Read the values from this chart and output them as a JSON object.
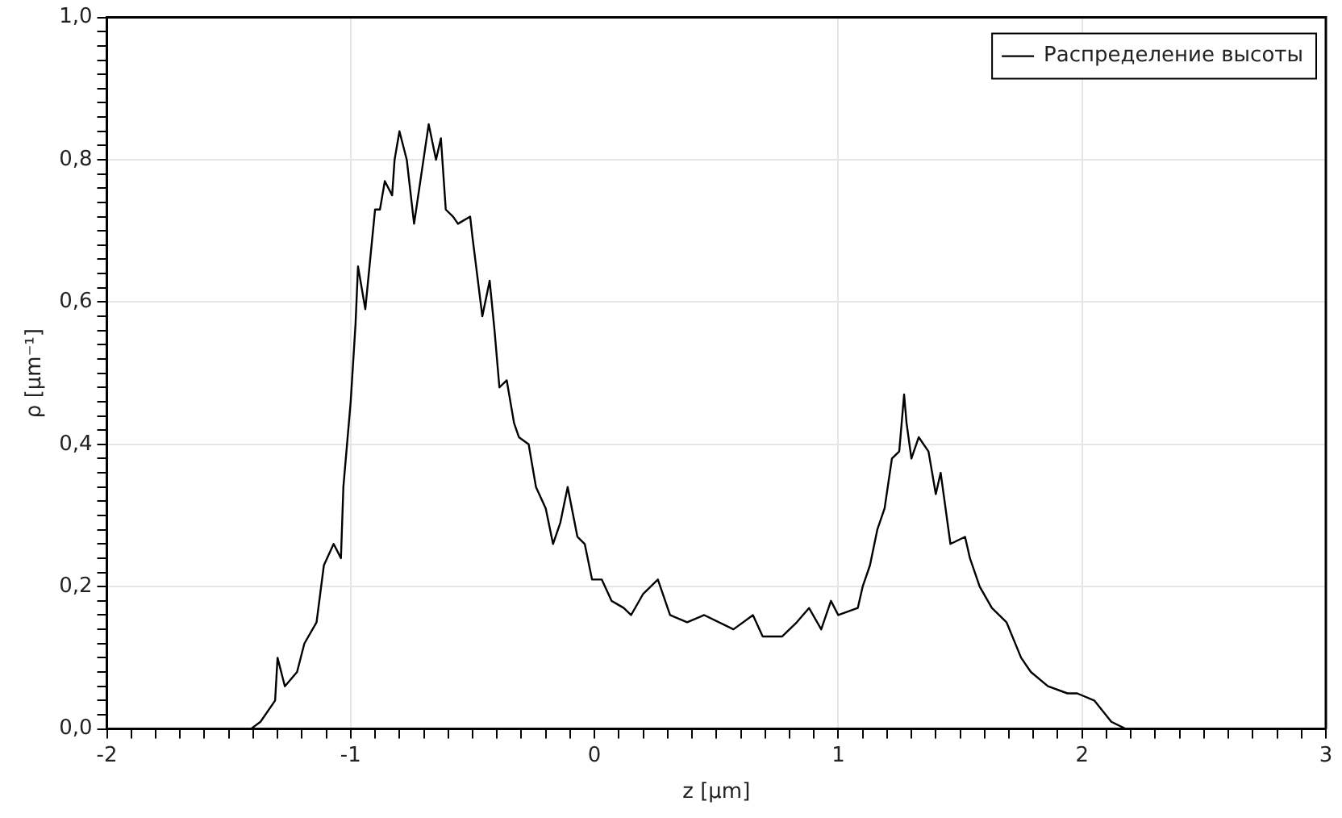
{
  "chart_data": {
    "type": "line",
    "xlabel": "z [µm]",
    "ylabel": "ρ [µm⁻¹]",
    "xlim": [
      -2,
      3
    ],
    "ylim": [
      0,
      1
    ],
    "xticks": [
      -2,
      {
        "value": -1.9,
        "label": null
      },
      {
        "value": -1.8,
        "label": null
      },
      {
        "value": -1.7,
        "label": null
      },
      {
        "value": -1.6,
        "label": null
      },
      {
        "value": -1.5,
        "label": null
      },
      {
        "value": -1.4,
        "label": null
      },
      {
        "value": -1.3,
        "label": null
      },
      {
        "value": -1.2,
        "label": null
      },
      {
        "value": -1.1,
        "label": null
      },
      -1,
      {
        "value": -0.9,
        "label": null
      },
      {
        "value": -0.8,
        "label": null
      },
      {
        "value": -0.7,
        "label": null
      },
      {
        "value": -0.6,
        "label": null
      },
      {
        "value": -0.5,
        "label": null
      },
      {
        "value": -0.4,
        "label": null
      },
      {
        "value": -0.3,
        "label": null
      },
      {
        "value": -0.2,
        "label": null
      },
      {
        "value": -0.1,
        "label": null
      },
      0,
      {
        "value": 0.1,
        "label": null
      },
      {
        "value": 0.2,
        "label": null
      },
      {
        "value": 0.3,
        "label": null
      },
      {
        "value": 0.4,
        "label": null
      },
      {
        "value": 0.5,
        "label": null
      },
      {
        "value": 0.6,
        "label": null
      },
      {
        "value": 0.7,
        "label": null
      },
      {
        "value": 0.8,
        "label": null
      },
      {
        "value": 0.9,
        "label": null
      },
      1,
      {
        "value": 1.1,
        "label": null
      },
      {
        "value": 1.2,
        "label": null
      },
      {
        "value": 1.3,
        "label": null
      },
      {
        "value": 1.4,
        "label": null
      },
      {
        "value": 1.5,
        "label": null
      },
      {
        "value": 1.6,
        "label": null
      },
      {
        "value": 1.7,
        "label": null
      },
      {
        "value": 1.8,
        "label": null
      },
      {
        "value": 1.9,
        "label": null
      },
      2,
      {
        "value": 2.1,
        "label": null
      },
      {
        "value": 2.2,
        "label": null
      },
      {
        "value": 2.3,
        "label": null
      },
      {
        "value": 2.4,
        "label": null
      },
      {
        "value": 2.5,
        "label": null
      },
      {
        "value": 2.6,
        "label": null
      },
      {
        "value": 2.7,
        "label": null
      },
      {
        "value": 2.8,
        "label": null
      },
      {
        "value": 2.9,
        "label": null
      },
      3
    ],
    "yticks": [
      {
        "value": 0,
        "label": "0,0"
      },
      {
        "value": 0.02,
        "label": null
      },
      {
        "value": 0.04,
        "label": null
      },
      {
        "value": 0.06,
        "label": null
      },
      {
        "value": 0.08,
        "label": null
      },
      {
        "value": 0.1,
        "label": null
      },
      {
        "value": 0.12,
        "label": null
      },
      {
        "value": 0.14,
        "label": null
      },
      {
        "value": 0.16,
        "label": null
      },
      {
        "value": 0.18,
        "label": null
      },
      {
        "value": 0.2,
        "label": "0,2"
      },
      {
        "value": 0.22,
        "label": null
      },
      {
        "value": 0.24,
        "label": null
      },
      {
        "value": 0.26,
        "label": null
      },
      {
        "value": 0.28,
        "label": null
      },
      {
        "value": 0.3,
        "label": null
      },
      {
        "value": 0.32,
        "label": null
      },
      {
        "value": 0.34,
        "label": null
      },
      {
        "value": 0.36,
        "label": null
      },
      {
        "value": 0.38,
        "label": null
      },
      {
        "value": 0.4,
        "label": "0,4"
      },
      {
        "value": 0.42,
        "label": null
      },
      {
        "value": 0.44,
        "label": null
      },
      {
        "value": 0.46,
        "label": null
      },
      {
        "value": 0.48,
        "label": null
      },
      {
        "value": 0.5,
        "label": null
      },
      {
        "value": 0.52,
        "label": null
      },
      {
        "value": 0.54,
        "label": null
      },
      {
        "value": 0.56,
        "label": null
      },
      {
        "value": 0.58,
        "label": null
      },
      {
        "value": 0.6,
        "label": "0,6"
      },
      {
        "value": 0.62,
        "label": null
      },
      {
        "value": 0.64,
        "label": null
      },
      {
        "value": 0.66,
        "label": null
      },
      {
        "value": 0.68,
        "label": null
      },
      {
        "value": 0.7,
        "label": null
      },
      {
        "value": 0.72,
        "label": null
      },
      {
        "value": 0.74,
        "label": null
      },
      {
        "value": 0.76,
        "label": null
      },
      {
        "value": 0.78,
        "label": null
      },
      {
        "value": 0.8,
        "label": "0,8"
      },
      {
        "value": 0.82,
        "label": null
      },
      {
        "value": 0.84,
        "label": null
      },
      {
        "value": 0.86,
        "label": null
      },
      {
        "value": 0.88,
        "label": null
      },
      {
        "value": 0.9,
        "label": null
      },
      {
        "value": 0.92,
        "label": null
      },
      {
        "value": 0.94,
        "label": null
      },
      {
        "value": 0.96,
        "label": null
      },
      {
        "value": 0.98,
        "label": null
      },
      {
        "value": 1,
        "label": "1,0"
      }
    ],
    "grid": true,
    "legend": "top right",
    "marker": "none",
    "line_style": "solid",
    "series": [
      {
        "name": "Распределение высоты",
        "color": "#000000",
        "x": [
          -1.41,
          -1.37,
          -1.31,
          -1.3,
          -1.27,
          -1.22,
          -1.19,
          -1.14,
          -1.11,
          -1.07,
          -1.04,
          -1.03,
          -1.0,
          -0.98,
          -0.97,
          -0.94,
          -0.92,
          -0.9,
          -0.88,
          -0.86,
          -0.83,
          -0.82,
          -0.8,
          -0.77,
          -0.74,
          -0.71,
          -0.68,
          -0.65,
          -0.63,
          -0.61,
          -0.58,
          -0.56,
          -0.51,
          -0.5,
          -0.46,
          -0.43,
          -0.41,
          -0.39,
          -0.36,
          -0.33,
          -0.31,
          -0.27,
          -0.24,
          -0.2,
          -0.17,
          -0.14,
          -0.11,
          -0.07,
          -0.04,
          -0.01,
          0.03,
          0.07,
          0.12,
          0.15,
          0.2,
          0.26,
          0.31,
          0.38,
          0.45,
          0.57,
          0.65,
          0.69,
          0.77,
          0.83,
          0.88,
          0.93,
          0.97,
          1.0,
          1.08,
          1.1,
          1.13,
          1.16,
          1.19,
          1.22,
          1.25,
          1.27,
          1.28,
          1.3,
          1.33,
          1.37,
          1.4,
          1.42,
          1.46,
          1.52,
          1.54,
          1.58,
          1.63,
          1.69,
          1.75,
          1.79,
          1.86,
          1.94,
          1.98,
          2.05,
          2.12,
          2.18
        ],
        "values": [
          0.0,
          0.01,
          0.04,
          0.1,
          0.06,
          0.08,
          0.12,
          0.15,
          0.23,
          0.26,
          0.24,
          0.34,
          0.46,
          0.57,
          0.65,
          0.59,
          0.66,
          0.73,
          0.73,
          0.77,
          0.75,
          0.8,
          0.84,
          0.8,
          0.71,
          0.78,
          0.85,
          0.8,
          0.83,
          0.73,
          0.72,
          0.71,
          0.72,
          0.69,
          0.58,
          0.63,
          0.56,
          0.48,
          0.49,
          0.43,
          0.41,
          0.4,
          0.34,
          0.31,
          0.26,
          0.29,
          0.34,
          0.27,
          0.26,
          0.21,
          0.21,
          0.18,
          0.17,
          0.16,
          0.19,
          0.21,
          0.16,
          0.15,
          0.16,
          0.14,
          0.16,
          0.13,
          0.13,
          0.15,
          0.17,
          0.14,
          0.18,
          0.16,
          0.17,
          0.2,
          0.23,
          0.28,
          0.31,
          0.38,
          0.39,
          0.47,
          0.43,
          0.38,
          0.41,
          0.39,
          0.33,
          0.36,
          0.26,
          0.27,
          0.24,
          0.2,
          0.17,
          0.15,
          0.1,
          0.08,
          0.06,
          0.05,
          0.05,
          0.04,
          0.01,
          0.0
        ]
      }
    ]
  }
}
